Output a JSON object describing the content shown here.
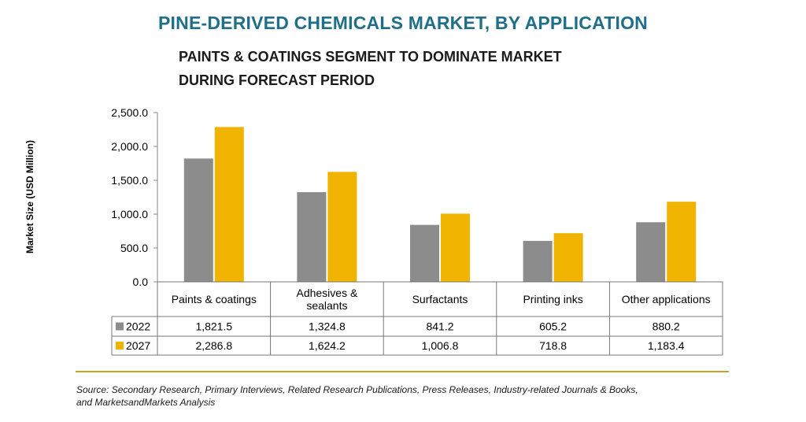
{
  "title": "PINE-DERIVED CHEMICALS MARKET, BY APPLICATION",
  "subtitle_line1": "PAINTS & COATINGS SEGMENT TO DOMINATE MARKET",
  "subtitle_line2": "DURING FORECAST PERIOD",
  "source_line1": "Source: Secondary Research, Primary Interviews, Related Research Publications, Press Releases, Industry-related Journals & Books,",
  "source_line2": "and MarketsandMarkets Analysis",
  "colors": {
    "title": "#1f6f8b",
    "s2022": "#8c8c8c",
    "s2027": "#f0b400",
    "rule": "#c9a227"
  },
  "chart_data": {
    "type": "bar",
    "ylabel": "Market Size (USD Million)",
    "ylim": [
      0,
      2500
    ],
    "yticks": [
      "0.0",
      "500.0",
      "1,000.0",
      "1,500.0",
      "2,000.0",
      "2,500.0"
    ],
    "categories": [
      [
        "Paints & coatings"
      ],
      [
        "Adhesives &",
        "sealants"
      ],
      [
        "Surfactants"
      ],
      [
        "Printing inks"
      ],
      [
        "Other applications"
      ]
    ],
    "series": [
      {
        "name": "2022",
        "values": [
          1821.5,
          1324.8,
          841.2,
          605.2,
          880.2
        ],
        "labels": [
          "1,821.5",
          "1,324.8",
          "841.2",
          "605.2",
          "880.2"
        ]
      },
      {
        "name": "2027",
        "values": [
          2286.8,
          1624.2,
          1006.8,
          718.8,
          1183.4
        ],
        "labels": [
          "2,286.8",
          "1,624.2",
          "1,006.8",
          "718.8",
          "1,183.4"
        ]
      }
    ],
    "grid": false,
    "legend": "data table rows"
  }
}
